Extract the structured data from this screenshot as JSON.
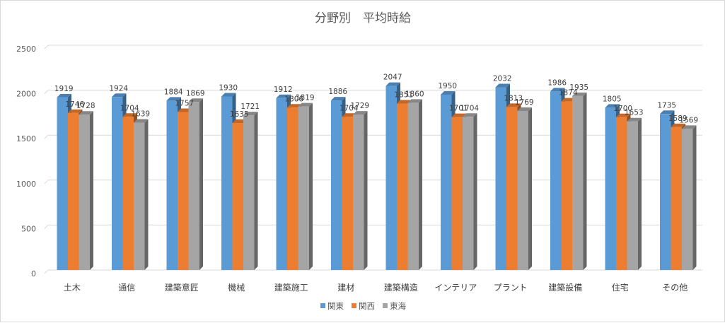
{
  "chart_data": {
    "type": "bar",
    "title": "分野別　平均時給",
    "categories": [
      "土木",
      "通信",
      "建築意匠",
      "機械",
      "建築施工",
      "建材",
      "建築構造",
      "インテリア",
      "プラント",
      "建築設備",
      "住宅",
      "その他"
    ],
    "series": [
      {
        "name": "関東",
        "color": "#5b9bd5",
        "values": [
          1919,
          1924,
          1884,
          1930,
          1912,
          1886,
          2047,
          1950,
          2032,
          1986,
          1805,
          1735
        ]
      },
      {
        "name": "関西",
        "color": "#ed7d31",
        "values": [
          1746,
          1704,
          1757,
          1635,
          1806,
          1704,
          1851,
          1701,
          1813,
          1874,
          1700,
          1589
        ]
      },
      {
        "name": "東海",
        "color": "#a5a5a5",
        "values": [
          1728,
          1639,
          1869,
          1721,
          1819,
          1729,
          1860,
          1704,
          1769,
          1935,
          1653,
          1569
        ]
      }
    ],
    "ylim": [
      0,
      2500
    ],
    "yticks": [
      0,
      500,
      1000,
      1500,
      2000,
      2500
    ],
    "grid": true,
    "legend": "bottom",
    "style": "3d-clustered-column"
  }
}
